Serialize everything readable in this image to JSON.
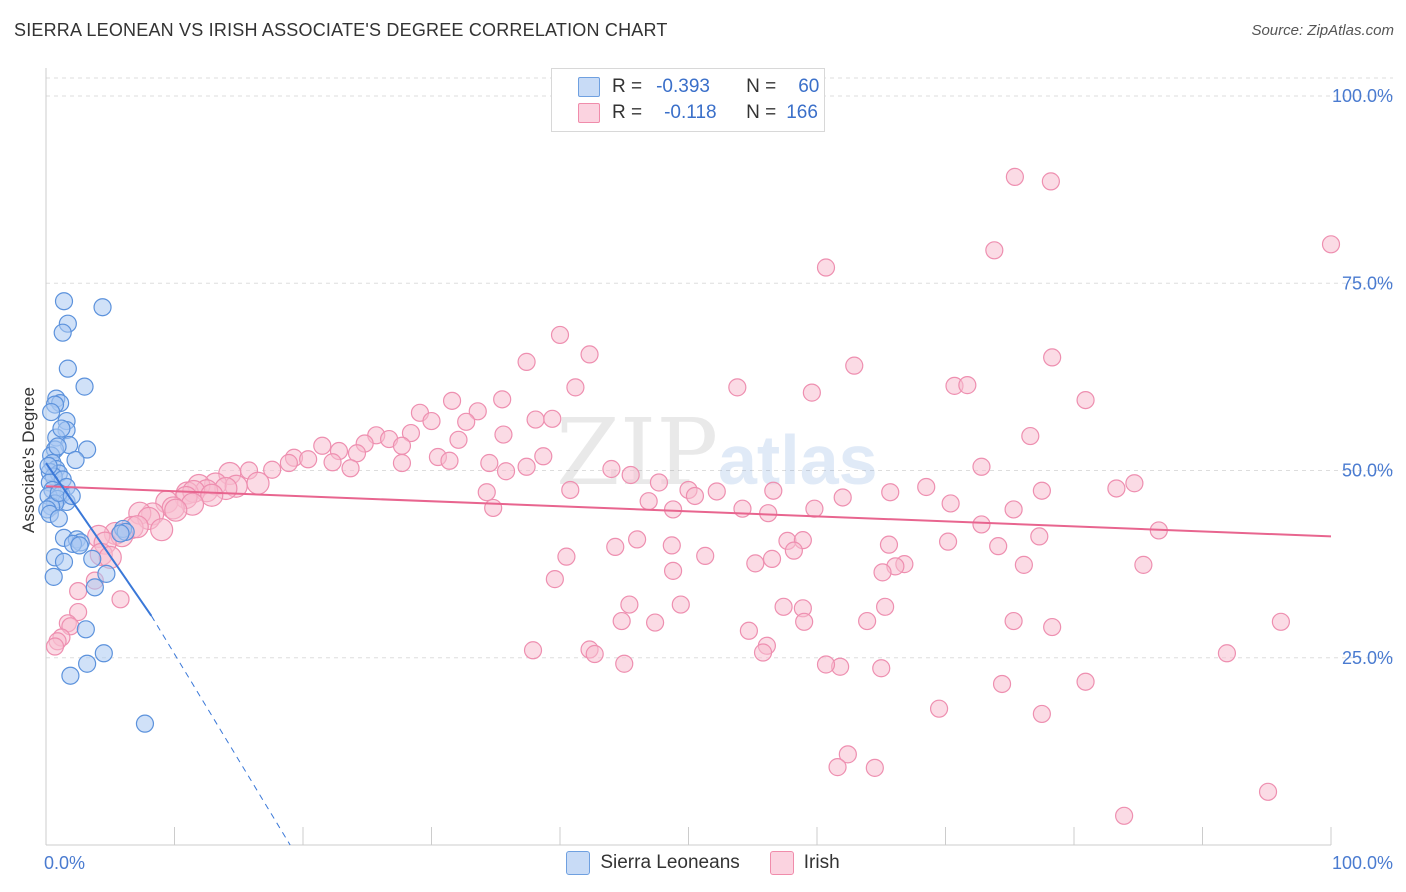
{
  "title": "SIERRA LEONEAN VS IRISH ASSOCIATE'S DEGREE CORRELATION CHART",
  "source": "Source: ZipAtlas.com",
  "watermark": "ZIPatlas",
  "legend": {
    "rows": [
      {
        "r_label": "R =",
        "r_value": "-0.393",
        "n_label": "N =",
        "n_value": "60",
        "color": "#6fa0e0"
      },
      {
        "r_label": "R =",
        "r_value": "-0.118",
        "n_label": "N =",
        "n_value": "166",
        "color": "#f08cab"
      }
    ]
  },
  "bottom_legend": [
    {
      "label": "Sierra Leoneans",
      "color": "#a9c8f2"
    },
    {
      "label": "Irish",
      "color": "#f7bdd0"
    }
  ],
  "colors": {
    "blue": "#3a78d8",
    "blue_fill": "#a9c8f2",
    "pink": "#e8658f",
    "pink_fill": "#f7bdd0",
    "grid": "#dddddd",
    "tick_text": "#4a7bd0"
  },
  "chart_data": {
    "type": "scatter",
    "title": "SIERRA LEONEAN VS IRISH ASSOCIATE'S DEGREE CORRELATION CHART",
    "xlabel": "",
    "ylabel": "Associate's Degree",
    "xlim": [
      0,
      100
    ],
    "ylim": [
      0,
      100
    ],
    "x_tick_labels": [
      "0.0%",
      "100.0%"
    ],
    "y_ticks": [
      25,
      50,
      75,
      100
    ],
    "y_tick_labels": [
      "25.0%",
      "50.0%",
      "75.0%",
      "100.0%"
    ],
    "grid": true,
    "series": [
      {
        "name": "Sierra Leoneans",
        "r": -0.393,
        "n": 60,
        "trend": {
          "x0": 0,
          "y0": 51,
          "x1": 8.2,
          "y1": 30.6,
          "dash_x1": 19,
          "dash_y1": 0
        },
        "points": [
          [
            1.4,
            72.6
          ],
          [
            4.4,
            71.8
          ],
          [
            1.7,
            69.6
          ],
          [
            1.3,
            68.4
          ],
          [
            1.7,
            63.6
          ],
          [
            3.0,
            61.2
          ],
          [
            0.8,
            59.6
          ],
          [
            1.1,
            59.0
          ],
          [
            0.7,
            58.8
          ],
          [
            1.6,
            56.6
          ],
          [
            1.6,
            55.4
          ],
          [
            0.8,
            54.4
          ],
          [
            1.8,
            53.4
          ],
          [
            3.2,
            52.8
          ],
          [
            0.7,
            52.8
          ],
          [
            0.4,
            52.0
          ],
          [
            2.3,
            51.4
          ],
          [
            0.5,
            51.0
          ],
          [
            0.8,
            50.2
          ],
          [
            0.3,
            49.8
          ],
          [
            1.0,
            49.6
          ],
          [
            0.6,
            49.2
          ],
          [
            1.3,
            48.8
          ],
          [
            0.3,
            48.4
          ],
          [
            1.6,
            47.8
          ],
          [
            0.5,
            47.4
          ],
          [
            1.2,
            46.8
          ],
          [
            0.2,
            46.6
          ],
          [
            0.9,
            46.2
          ],
          [
            1.6,
            45.8
          ],
          [
            0.7,
            45.6
          ],
          [
            0.4,
            45.2
          ],
          [
            0.1,
            44.8
          ],
          [
            0.3,
            44.2
          ],
          [
            1.0,
            43.6
          ],
          [
            6.0,
            42.2
          ],
          [
            6.2,
            41.8
          ],
          [
            1.4,
            41.0
          ],
          [
            2.4,
            40.8
          ],
          [
            2.7,
            40.4
          ],
          [
            2.1,
            40.2
          ],
          [
            2.6,
            40.0
          ],
          [
            0.7,
            38.4
          ],
          [
            1.4,
            37.8
          ],
          [
            0.6,
            35.8
          ],
          [
            4.7,
            36.2
          ],
          [
            3.8,
            34.4
          ],
          [
            3.1,
            28.8
          ],
          [
            4.5,
            25.6
          ],
          [
            3.2,
            24.2
          ],
          [
            1.9,
            22.6
          ],
          [
            7.7,
            16.2
          ],
          [
            5.8,
            41.6
          ],
          [
            1.0,
            47.0
          ],
          [
            0.2,
            50.6
          ],
          [
            0.9,
            53.2
          ],
          [
            1.2,
            55.6
          ],
          [
            2.0,
            46.6
          ],
          [
            0.4,
            57.8
          ],
          [
            3.6,
            38.2
          ]
        ]
      },
      {
        "name": "Irish",
        "r": -0.118,
        "n": 166,
        "trend": {
          "x0": 0,
          "y0": 47.9,
          "x1": 100,
          "y1": 41.2
        },
        "points": [
          [
            75.4,
            89.2
          ],
          [
            78.2,
            88.6
          ],
          [
            100,
            80.2
          ],
          [
            73.8,
            79.4
          ],
          [
            60.7,
            77.1
          ],
          [
            40.0,
            68.1
          ],
          [
            42.3,
            65.5
          ],
          [
            37.4,
            64.5
          ],
          [
            62.9,
            64.0
          ],
          [
            78.3,
            65.1
          ],
          [
            41.2,
            61.1
          ],
          [
            53.8,
            61.1
          ],
          [
            70.7,
            61.3
          ],
          [
            71.7,
            61.4
          ],
          [
            59.6,
            60.4
          ],
          [
            80.9,
            59.4
          ],
          [
            35.5,
            59.5
          ],
          [
            31.6,
            59.3
          ],
          [
            33.6,
            57.9
          ],
          [
            29.1,
            57.7
          ],
          [
            38.1,
            56.8
          ],
          [
            39.4,
            56.9
          ],
          [
            32.7,
            56.5
          ],
          [
            30.0,
            56.6
          ],
          [
            28.4,
            55.0
          ],
          [
            35.6,
            54.8
          ],
          [
            76.6,
            54.6
          ],
          [
            25.7,
            54.7
          ],
          [
            32.1,
            54.1
          ],
          [
            26.7,
            54.2
          ],
          [
            24.8,
            53.6
          ],
          [
            27.7,
            53.3
          ],
          [
            21.5,
            53.3
          ],
          [
            22.8,
            52.6
          ],
          [
            24.2,
            52.3
          ],
          [
            38.7,
            51.9
          ],
          [
            30.5,
            51.8
          ],
          [
            19.3,
            51.7
          ],
          [
            20.4,
            51.5
          ],
          [
            18.9,
            51.0
          ],
          [
            27.7,
            51.0
          ],
          [
            34.5,
            51.0
          ],
          [
            31.4,
            51.3
          ],
          [
            22.3,
            51.1
          ],
          [
            37.4,
            50.5
          ],
          [
            44.0,
            50.2
          ],
          [
            72.8,
            50.5
          ],
          [
            23.7,
            50.3
          ],
          [
            17.6,
            50.1
          ],
          [
            15.8,
            50.0
          ],
          [
            35.8,
            49.9
          ],
          [
            14.3,
            49.6
          ],
          [
            45.5,
            49.4
          ],
          [
            47.7,
            48.4
          ],
          [
            16.5,
            48.3
          ],
          [
            13.2,
            48.2
          ],
          [
            11.9,
            48.0
          ],
          [
            84.7,
            48.3
          ],
          [
            77.5,
            47.3
          ],
          [
            68.5,
            47.8
          ],
          [
            83.3,
            47.6
          ],
          [
            14.8,
            47.9
          ],
          [
            14.0,
            47.6
          ],
          [
            12.5,
            47.3
          ],
          [
            11.0,
            47.0
          ],
          [
            34.3,
            47.1
          ],
          [
            40.8,
            47.4
          ],
          [
            50.0,
            47.4
          ],
          [
            52.2,
            47.2
          ],
          [
            56.6,
            47.3
          ],
          [
            65.7,
            47.1
          ],
          [
            11.5,
            47.2
          ],
          [
            10.9,
            46.4
          ],
          [
            50.5,
            46.6
          ],
          [
            62.0,
            46.4
          ],
          [
            12.9,
            46.7
          ],
          [
            9.4,
            45.8
          ],
          [
            46.9,
            45.9
          ],
          [
            70.4,
            45.6
          ],
          [
            11.4,
            45.5
          ],
          [
            9.9,
            45.0
          ],
          [
            34.8,
            45.0
          ],
          [
            48.8,
            44.8
          ],
          [
            54.2,
            44.9
          ],
          [
            59.8,
            44.9
          ],
          [
            75.3,
            44.8
          ],
          [
            8.3,
            44.2
          ],
          [
            10.1,
            44.7
          ],
          [
            7.3,
            44.3
          ],
          [
            8.0,
            43.6
          ],
          [
            56.2,
            44.3
          ],
          [
            72.8,
            42.8
          ],
          [
            86.6,
            42.0
          ],
          [
            6.7,
            42.4
          ],
          [
            7.1,
            42.5
          ],
          [
            9.0,
            42.1
          ],
          [
            5.4,
            41.6
          ],
          [
            5.9,
            41.3
          ],
          [
            4.1,
            41.2
          ],
          [
            70.2,
            40.5
          ],
          [
            77.3,
            41.2
          ],
          [
            46.0,
            40.8
          ],
          [
            57.7,
            40.6
          ],
          [
            4.6,
            40.3
          ],
          [
            58.9,
            40.7
          ],
          [
            65.6,
            40.1
          ],
          [
            48.7,
            40.0
          ],
          [
            44.3,
            39.8
          ],
          [
            74.1,
            39.9
          ],
          [
            58.2,
            39.3
          ],
          [
            4.3,
            38.8
          ],
          [
            51.3,
            38.6
          ],
          [
            5.0,
            38.4
          ],
          [
            40.5,
            38.5
          ],
          [
            56.5,
            38.2
          ],
          [
            55.2,
            37.6
          ],
          [
            76.1,
            37.4
          ],
          [
            66.8,
            37.5
          ],
          [
            85.4,
            37.4
          ],
          [
            66.1,
            37.2
          ],
          [
            48.8,
            36.6
          ],
          [
            65.1,
            36.4
          ],
          [
            39.6,
            35.5
          ],
          [
            3.8,
            35.3
          ],
          [
            2.5,
            33.9
          ],
          [
            5.8,
            32.8
          ],
          [
            45.4,
            32.1
          ],
          [
            49.4,
            32.1
          ],
          [
            65.3,
            31.8
          ],
          [
            57.4,
            31.8
          ],
          [
            58.9,
            31.6
          ],
          [
            2.5,
            31.1
          ],
          [
            44.8,
            29.9
          ],
          [
            47.4,
            29.7
          ],
          [
            59.0,
            29.8
          ],
          [
            63.9,
            29.9
          ],
          [
            75.3,
            29.9
          ],
          [
            96.1,
            29.8
          ],
          [
            1.7,
            29.6
          ],
          [
            1.9,
            29.2
          ],
          [
            78.3,
            29.1
          ],
          [
            54.7,
            28.6
          ],
          [
            1.2,
            27.7
          ],
          [
            0.9,
            27.2
          ],
          [
            0.7,
            26.5
          ],
          [
            37.9,
            26.0
          ],
          [
            42.3,
            26.1
          ],
          [
            56.1,
            26.6
          ],
          [
            55.8,
            25.7
          ],
          [
            42.7,
            25.5
          ],
          [
            91.9,
            25.6
          ],
          [
            45.0,
            24.2
          ],
          [
            61.8,
            23.8
          ],
          [
            60.7,
            24.1
          ],
          [
            80.9,
            21.8
          ],
          [
            65.0,
            23.6
          ],
          [
            74.4,
            21.5
          ],
          [
            69.5,
            18.2
          ],
          [
            77.5,
            17.5
          ],
          [
            62.4,
            12.1
          ],
          [
            64.5,
            10.3
          ],
          [
            61.6,
            10.4
          ],
          [
            95.1,
            7.1
          ],
          [
            83.9,
            3.9
          ]
        ]
      }
    ]
  }
}
